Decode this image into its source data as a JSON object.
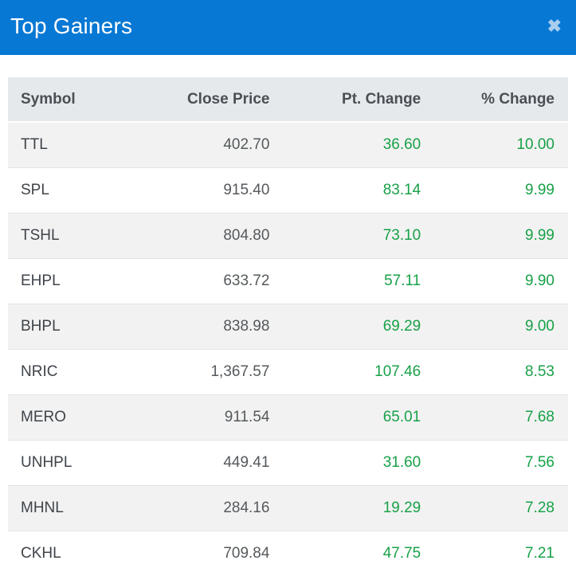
{
  "modal": {
    "title": "Top Gainers",
    "close_icon_glyph": "✖"
  },
  "table": {
    "columns": [
      "Symbol",
      "Close Price",
      "Pt. Change",
      "% Change"
    ],
    "rows": [
      {
        "symbol": "TTL",
        "close_price": "402.70",
        "pt_change": "36.60",
        "pct_change": "10.00"
      },
      {
        "symbol": "SPL",
        "close_price": "915.40",
        "pt_change": "83.14",
        "pct_change": "9.99"
      },
      {
        "symbol": "TSHL",
        "close_price": "804.80",
        "pt_change": "73.10",
        "pct_change": "9.99"
      },
      {
        "symbol": "EHPL",
        "close_price": "633.72",
        "pt_change": "57.11",
        "pct_change": "9.90"
      },
      {
        "symbol": "BHPL",
        "close_price": "838.98",
        "pt_change": "69.29",
        "pct_change": "9.00"
      },
      {
        "symbol": "NRIC",
        "close_price": "1,367.57",
        "pt_change": "107.46",
        "pct_change": "8.53"
      },
      {
        "symbol": "MERO",
        "close_price": "911.54",
        "pt_change": "65.01",
        "pct_change": "7.68"
      },
      {
        "symbol": "UNHPL",
        "close_price": "449.41",
        "pt_change": "31.60",
        "pct_change": "7.56"
      },
      {
        "symbol": "MHNL",
        "close_price": "284.16",
        "pt_change": "19.29",
        "pct_change": "7.28"
      },
      {
        "symbol": "CKHL",
        "close_price": "709.84",
        "pt_change": "47.75",
        "pct_change": "7.21"
      }
    ]
  },
  "colors": {
    "titlebar_bg": "#0778d4",
    "titlebar_text": "#ffffff",
    "close_icon": "#a8cdee",
    "table_head_bg": "#e6e9eb",
    "table_head_text": "#494f55",
    "row_stripe_bg": "#f2f2f2",
    "row_bg": "#ffffff",
    "symbol_text": "#3f444a",
    "price_text": "#55595c",
    "positive_change": "#18a148",
    "row_divider": "#e4e4e4"
  }
}
